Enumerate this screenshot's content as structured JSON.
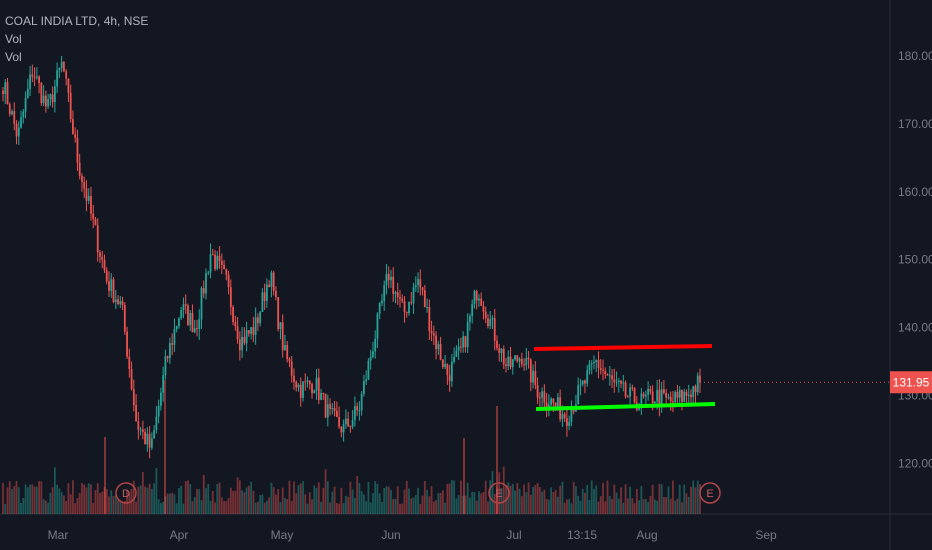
{
  "legend": {
    "symbol": "COAL INDIA LTD, 4h, NSE",
    "vol_1": "Vol",
    "vol_2": "Vol"
  },
  "price_axis": {
    "ticks": [
      "180.00",
      "170.00",
      "160.00",
      "150.00",
      "140.00",
      "130.00",
      "120.00"
    ],
    "last_price": "131.95"
  },
  "time_axis": {
    "ticks": [
      "Mar",
      "Apr",
      "May",
      "Jun",
      "Jul",
      "13:15",
      "Aug",
      "Sep"
    ]
  },
  "events": [
    {
      "label": "D"
    },
    {
      "label": "E"
    },
    {
      "label": "E"
    }
  ],
  "colors": {
    "background": "#131722",
    "up": "#26a69a",
    "down": "#ef5350",
    "resistance": "#ff0000",
    "support": "#00ff00",
    "last_price_bg": "#ef5350"
  },
  "chart_data": {
    "type": "candlestick",
    "title": "COAL INDIA LTD, 4h, NSE",
    "ylim": [
      113,
      184
    ],
    "close_path": [
      {
        "x": "Feb end",
        "y": 176
      },
      {
        "x": "Feb end",
        "y": 168
      },
      {
        "x": "Feb end",
        "y": 178
      },
      {
        "x": "Mar",
        "y": 172
      },
      {
        "x": "Mar",
        "y": 179
      },
      {
        "x": "Mar",
        "y": 165
      },
      {
        "x": "Mar",
        "y": 156
      },
      {
        "x": "Mar",
        "y": 147
      },
      {
        "x": "Mar",
        "y": 143
      },
      {
        "x": "Mar",
        "y": 126
      },
      {
        "x": "Mar",
        "y": 122
      },
      {
        "x": "Mar",
        "y": 135
      },
      {
        "x": "Apr",
        "y": 143
      },
      {
        "x": "Apr",
        "y": 140
      },
      {
        "x": "Apr",
        "y": 151
      },
      {
        "x": "Apr",
        "y": 147
      },
      {
        "x": "Apr",
        "y": 138
      },
      {
        "x": "Apr",
        "y": 140
      },
      {
        "x": "May",
        "y": 148
      },
      {
        "x": "May",
        "y": 136
      },
      {
        "x": "May",
        "y": 131
      },
      {
        "x": "May",
        "y": 132
      },
      {
        "x": "May",
        "y": 127
      },
      {
        "x": "May",
        "y": 125
      },
      {
        "x": "Jun",
        "y": 128
      },
      {
        "x": "Jun",
        "y": 138
      },
      {
        "x": "Jun",
        "y": 148
      },
      {
        "x": "Jun",
        "y": 142
      },
      {
        "x": "Jun",
        "y": 147
      },
      {
        "x": "Jun",
        "y": 139
      },
      {
        "x": "Jun",
        "y": 133
      },
      {
        "x": "Jun",
        "y": 137
      },
      {
        "x": "Jun",
        "y": 146
      },
      {
        "x": "Jun",
        "y": 140
      },
      {
        "x": "Jul",
        "y": 134
      },
      {
        "x": "Jul",
        "y": 136
      },
      {
        "x": "Jul",
        "y": 131
      },
      {
        "x": "Jul",
        "y": 129
      },
      {
        "x": "Jul",
        "y": 127
      },
      {
        "x": "Jul",
        "y": 131
      },
      {
        "x": "Jul",
        "y": 135
      },
      {
        "x": "Jul",
        "y": 132
      },
      {
        "x": "Aug",
        "y": 130
      },
      {
        "x": "Aug",
        "y": 129
      },
      {
        "x": "Aug",
        "y": 130
      },
      {
        "x": "Aug",
        "y": 129
      },
      {
        "x": "Aug",
        "y": 130
      },
      {
        "x": "Aug",
        "y": 131.95
      }
    ],
    "trendlines": [
      {
        "color": "red",
        "from": {
          "x": "Jul",
          "y": 137
        },
        "to": {
          "x": "Aug",
          "y": 138
        }
      },
      {
        "color": "green",
        "from": {
          "x": "Jul",
          "y": 128.5
        },
        "to": {
          "x": "Aug",
          "y": 129.5
        }
      }
    ]
  }
}
